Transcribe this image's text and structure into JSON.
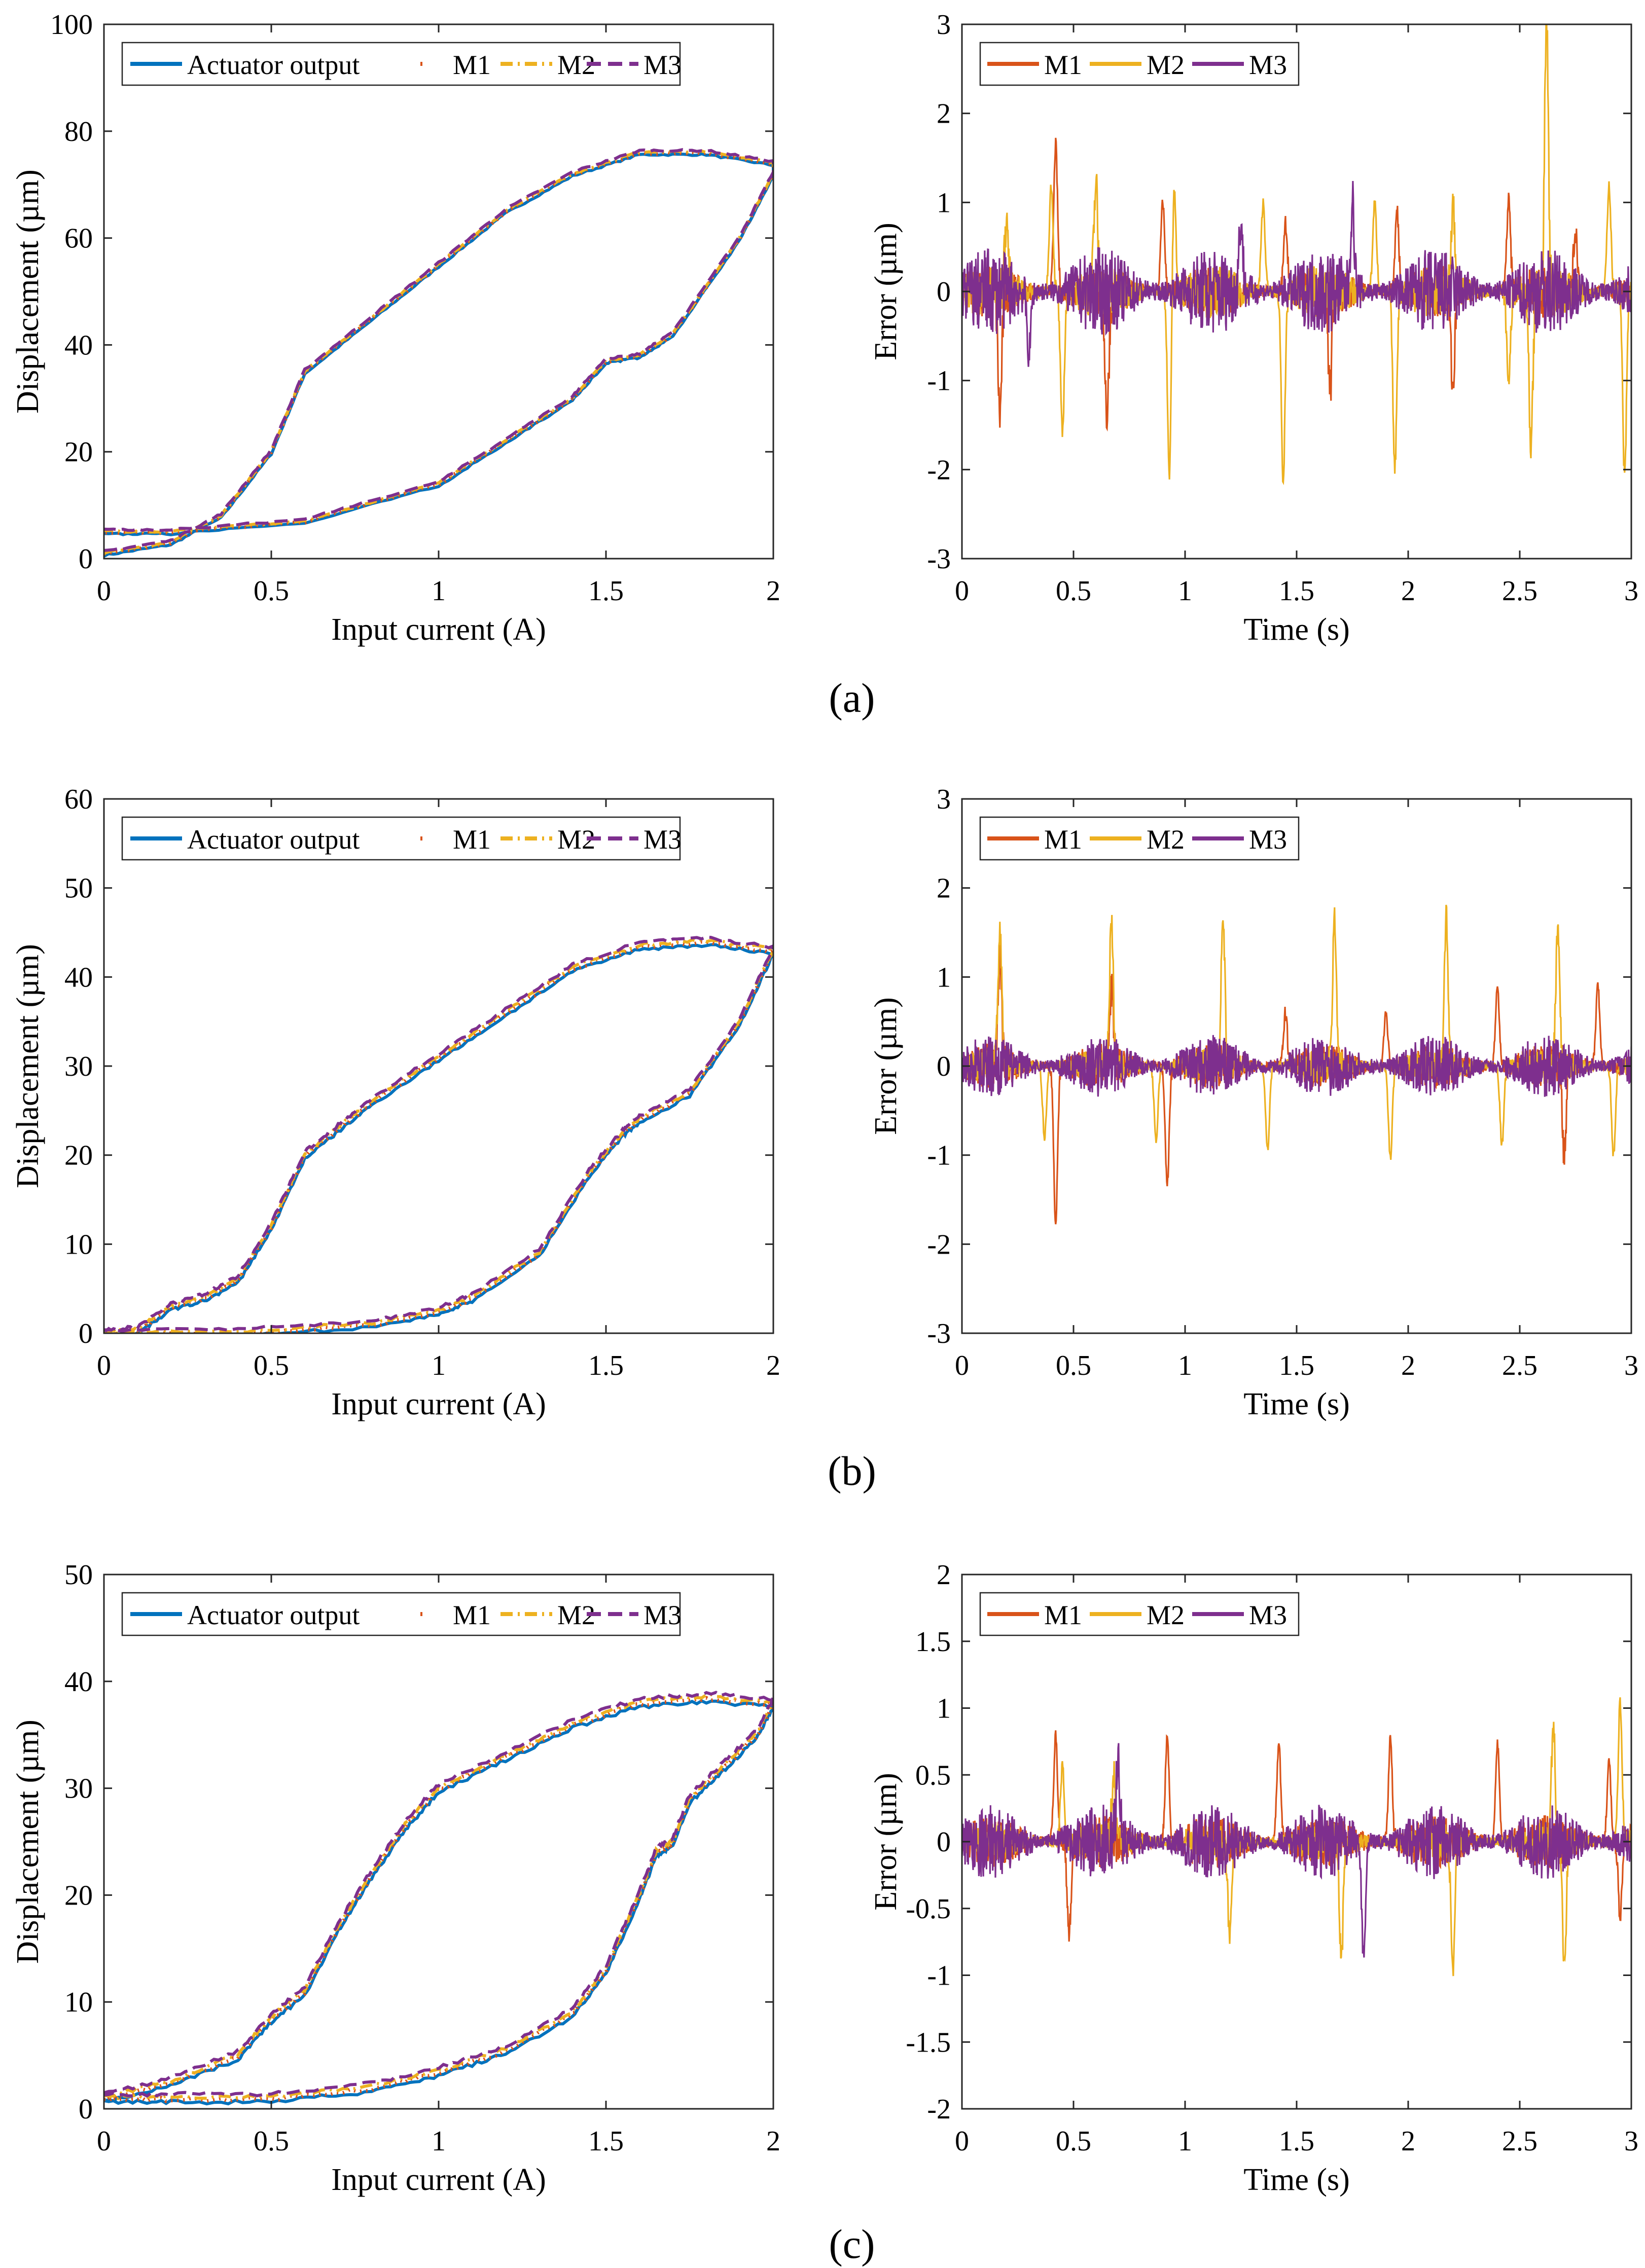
{
  "figure": {
    "subcaptions": [
      "(a)",
      "(b)",
      "(c)"
    ]
  },
  "colors": {
    "actuator": "#0072BD",
    "m1": "#D95319",
    "m2": "#EDB120",
    "m3": "#7E2F8E"
  },
  "chart_data": [
    {
      "id": "a-left",
      "type": "line",
      "title": "",
      "xlabel": "Input current (A)",
      "ylabel": "Displacement (µm)",
      "xlim": [
        0,
        2
      ],
      "ylim": [
        0,
        100
      ],
      "xticks": [
        0,
        0.5,
        1,
        1.5,
        2
      ],
      "xtick_labels": [
        "0",
        "0.5",
        "1",
        "1.5",
        "2"
      ],
      "yticks": [
        0,
        20,
        40,
        60,
        80,
        100
      ],
      "ytick_labels": [
        "0",
        "20",
        "40",
        "60",
        "80",
        "100"
      ],
      "legend": [
        "Actuator output",
        "M1",
        "M2",
        "M3"
      ],
      "legend_position": "top-left",
      "ascending_x": [
        0,
        0.2,
        0.35,
        0.5,
        0.6,
        0.8,
        1.0,
        1.2,
        1.4,
        1.6,
        1.8,
        2.0
      ],
      "ascending_y": [
        1,
        3,
        8,
        20,
        35,
        45,
        55,
        65,
        72,
        76,
        76,
        74
      ],
      "descending_x": [
        2.0,
        1.9,
        1.7,
        1.6,
        1.5,
        1.4,
        1.2,
        1.0,
        0.6,
        0.2,
        0
      ],
      "descending_y": [
        72,
        60,
        42,
        38,
        37,
        30,
        22,
        14,
        7,
        5,
        5
      ],
      "series": [
        {
          "name": "Actuator output",
          "style": "solid"
        },
        {
          "name": "M1",
          "style": "dotted"
        },
        {
          "name": "M2",
          "style": "dashdot"
        },
        {
          "name": "M3",
          "style": "dashed"
        }
      ]
    },
    {
      "id": "a-right",
      "type": "line",
      "title": "",
      "xlabel": "Time (s)",
      "ylabel": "Error (µm)",
      "xlim": [
        0,
        3
      ],
      "ylim": [
        -3,
        3
      ],
      "xticks": [
        0,
        0.5,
        1,
        1.5,
        2,
        2.5,
        3
      ],
      "xtick_labels": [
        "0",
        "0.5",
        "1",
        "1.5",
        "2",
        "2.5",
        "3"
      ],
      "yticks": [
        -3,
        -2,
        -1,
        0,
        1,
        2,
        3
      ],
      "ytick_labels": [
        "-3",
        "-2",
        "-1",
        "0",
        "1",
        "2",
        "3"
      ],
      "legend": [
        "M1",
        "M2",
        "M3"
      ],
      "legend_position": "top-left",
      "series": [
        {
          "name": "M1",
          "noise": 0.3,
          "spikes": [
            [
              0.17,
              -1.4
            ],
            [
              0.42,
              1.65
            ],
            [
              0.65,
              -1.4
            ],
            [
              0.9,
              1.0
            ],
            [
              1.45,
              0.8
            ],
            [
              1.65,
              -1.1
            ],
            [
              1.95,
              0.9
            ],
            [
              2.2,
              -1.1
            ],
            [
              2.45,
              1.0
            ],
            [
              2.75,
              0.7
            ]
          ]
        },
        {
          "name": "M2",
          "noise": 0.3,
          "spikes": [
            [
              0.2,
              0.8
            ],
            [
              0.4,
              1.2
            ],
            [
              0.45,
              -1.6
            ],
            [
              0.6,
              1.2
            ],
            [
              0.95,
              1.2
            ],
            [
              0.93,
              -2.1
            ],
            [
              1.35,
              1.0
            ],
            [
              1.44,
              -2.1
            ],
            [
              1.85,
              1.0
            ],
            [
              1.94,
              -2.0
            ],
            [
              2.2,
              1.0
            ],
            [
              2.45,
              -1.0
            ],
            [
              2.62,
              3.0
            ],
            [
              2.55,
              -1.9
            ],
            [
              2.9,
              1.2
            ],
            [
              2.97,
              -2.1
            ]
          ]
        },
        {
          "name": "M3",
          "noise": 0.5,
          "spikes": [
            [
              0.3,
              -0.7
            ],
            [
              1.25,
              0.8
            ],
            [
              1.75,
              1.0
            ]
          ]
        }
      ]
    },
    {
      "id": "b-left",
      "type": "line",
      "title": "",
      "xlabel": "Input current (A)",
      "ylabel": "Displacement (µm)",
      "xlim": [
        0,
        2
      ],
      "ylim": [
        0,
        60
      ],
      "xticks": [
        0,
        0.5,
        1,
        1.5,
        2
      ],
      "xtick_labels": [
        "0",
        "0.5",
        "1",
        "1.5",
        "2"
      ],
      "yticks": [
        0,
        10,
        20,
        30,
        40,
        50,
        60
      ],
      "ytick_labels": [
        "0",
        "10",
        "20",
        "30",
        "40",
        "50",
        "60"
      ],
      "legend": [
        "Actuator output",
        "M1",
        "M2",
        "M3"
      ],
      "legend_position": "top-left",
      "ascending_x": [
        0,
        0.1,
        0.2,
        0.3,
        0.4,
        0.5,
        0.6,
        0.7,
        0.8,
        1.0,
        1.2,
        1.4,
        1.6,
        1.8,
        2.0
      ],
      "ascending_y": [
        0,
        0.3,
        3,
        4,
        6,
        12,
        20,
        23,
        26,
        31,
        36,
        41,
        43.5,
        44,
        43
      ],
      "descending_x": [
        2.0,
        1.9,
        1.75,
        1.6,
        1.55,
        1.45,
        1.3,
        1.1,
        1.0,
        0.8,
        0.4,
        0
      ],
      "descending_y": [
        43,
        35,
        27,
        24,
        22.5,
        18,
        9,
        4,
        2.5,
        1.0,
        0.1,
        0
      ],
      "series": [
        {
          "name": "Actuator output",
          "style": "solid"
        },
        {
          "name": "M1",
          "style": "dotted"
        },
        {
          "name": "M2",
          "style": "dashdot"
        },
        {
          "name": "M3",
          "style": "dashed"
        }
      ]
    },
    {
      "id": "b-right",
      "type": "line",
      "title": "",
      "xlabel": "Time (s)",
      "ylabel": "Error (µm)",
      "xlim": [
        0,
        3
      ],
      "ylim": [
        -3,
        3
      ],
      "xticks": [
        0,
        0.5,
        1,
        1.5,
        2,
        2.5,
        3
      ],
      "xtick_labels": [
        "0",
        "0.5",
        "1",
        "1.5",
        "2",
        "2.5",
        "3"
      ],
      "yticks": [
        -3,
        -2,
        -1,
        0,
        1,
        2,
        3
      ],
      "ytick_labels": [
        "-3",
        "-2",
        "-1",
        "0",
        "1",
        "2",
        "3"
      ],
      "legend": [
        "M1",
        "M2",
        "M3"
      ],
      "legend_position": "top-left",
      "series": [
        {
          "name": "M1",
          "noise": 0.25,
          "spikes": [
            [
              0.17,
              1.2
            ],
            [
              0.42,
              -1.75
            ],
            [
              0.67,
              0.9
            ],
            [
              0.92,
              -1.35
            ],
            [
              1.45,
              0.6
            ],
            [
              1.9,
              0.6
            ],
            [
              2.4,
              0.9
            ],
            [
              2.7,
              -1.0
            ],
            [
              2.85,
              0.9
            ]
          ]
        },
        {
          "name": "M2",
          "noise": 0.2,
          "spikes": [
            [
              0.17,
              1.5
            ],
            [
              0.37,
              -0.8
            ],
            [
              0.67,
              1.6
            ],
            [
              0.87,
              -0.85
            ],
            [
              1.17,
              1.65
            ],
            [
              1.37,
              -0.95
            ],
            [
              1.67,
              1.65
            ],
            [
              1.92,
              -1.05
            ],
            [
              2.17,
              1.65
            ],
            [
              2.42,
              -0.9
            ],
            [
              2.67,
              1.5
            ],
            [
              2.92,
              -1.0
            ]
          ]
        },
        {
          "name": "M3",
          "noise": 0.35,
          "spikes": []
        }
      ]
    },
    {
      "id": "c-left",
      "type": "line",
      "title": "",
      "xlabel": "Input current (A)",
      "ylabel": "Displacement (µm)",
      "xlim": [
        0,
        2
      ],
      "ylim": [
        0,
        50
      ],
      "xticks": [
        0,
        0.5,
        1,
        1.5,
        2
      ],
      "xtick_labels": [
        "0",
        "0.5",
        "1",
        "1.5",
        "2"
      ],
      "yticks": [
        0,
        10,
        20,
        30,
        40,
        50
      ],
      "ytick_labels": [
        "0",
        "10",
        "20",
        "30",
        "40",
        "50"
      ],
      "legend": [
        "Actuator output",
        "M1",
        "M2",
        "M3"
      ],
      "legend_position": "top-left",
      "ascending_x": [
        0,
        0.2,
        0.4,
        0.5,
        0.6,
        0.7,
        0.8,
        0.9,
        1.0,
        1.2,
        1.4,
        1.6,
        1.8,
        2.0
      ],
      "ascending_y": [
        1,
        2.5,
        5,
        8.5,
        11,
        17,
        22,
        26.5,
        30,
        33,
        36,
        38,
        38.5,
        38
      ],
      "descending_x": [
        2.0,
        1.95,
        1.85,
        1.75,
        1.7,
        1.65,
        1.6,
        1.5,
        1.4,
        1.2,
        1.0,
        0.8,
        0.5,
        0.2,
        0
      ],
      "descending_y": [
        38,
        35,
        32,
        29,
        25,
        24,
        20,
        13,
        9,
        5.5,
        3.5,
        2,
        1,
        1,
        1
      ],
      "series": [
        {
          "name": "Actuator output",
          "style": "solid"
        },
        {
          "name": "M1",
          "style": "dotted"
        },
        {
          "name": "M2",
          "style": "dashdot"
        },
        {
          "name": "M3",
          "style": "dashed"
        }
      ]
    },
    {
      "id": "c-right",
      "type": "line",
      "title": "",
      "xlabel": "Time (s)",
      "ylabel": "Error (µm)",
      "xlim": [
        0,
        3
      ],
      "ylim": [
        -2,
        2
      ],
      "xticks": [
        0,
        0.5,
        1,
        1.5,
        2,
        2.5,
        3
      ],
      "xtick_labels": [
        "0",
        "0.5",
        "1",
        "1.5",
        "2",
        "2.5",
        "3"
      ],
      "yticks": [
        -2,
        -1.5,
        -1,
        -0.5,
        0,
        0.5,
        1,
        1.5,
        2
      ],
      "ytick_labels": [
        "-2",
        "-1.5",
        "-1",
        "-0.5",
        "0",
        "0.5",
        "1",
        "1.5",
        "2"
      ],
      "legend": [
        "M1",
        "M2",
        "M3"
      ],
      "legend_position": "top-left",
      "series": [
        {
          "name": "M1",
          "noise": 0.2,
          "spikes": [
            [
              0.42,
              0.8
            ],
            [
              0.48,
              -0.7
            ],
            [
              0.92,
              0.8
            ],
            [
              1.42,
              0.75
            ],
            [
              1.92,
              0.75
            ],
            [
              2.4,
              0.75
            ],
            [
              2.9,
              0.6
            ],
            [
              2.95,
              -0.55
            ]
          ]
        },
        {
          "name": "M2",
          "noise": 0.15,
          "spikes": [
            [
              0.45,
              0.55
            ],
            [
              0.68,
              0.5
            ],
            [
              1.2,
              -0.75
            ],
            [
              1.7,
              -0.9
            ],
            [
              2.2,
              -0.92
            ],
            [
              2.65,
              0.9
            ],
            [
              2.7,
              -0.9
            ],
            [
              2.95,
              1.05
            ]
          ]
        },
        {
          "name": "M3",
          "noise": 0.28,
          "spikes": [
            [
              0.7,
              0.6
            ],
            [
              1.8,
              -0.85
            ]
          ]
        }
      ]
    }
  ]
}
